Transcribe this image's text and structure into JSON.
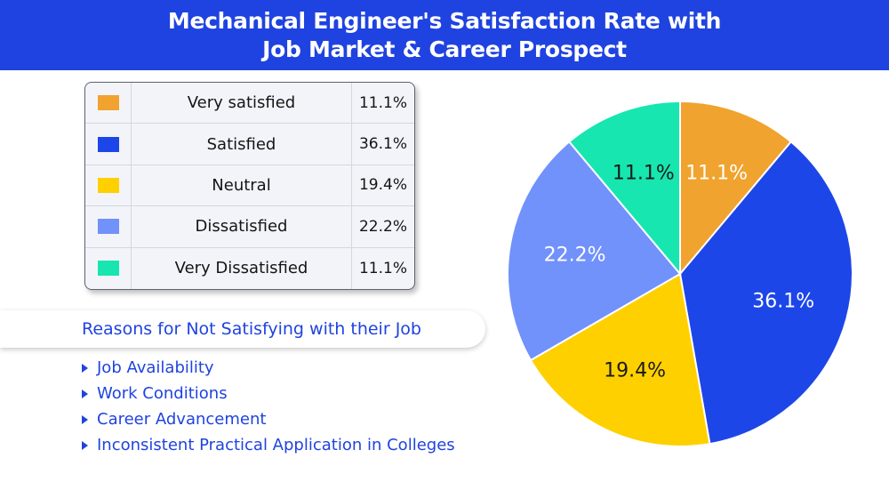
{
  "title_lines": [
    "Mechanical Engineer's Satisfaction Rate with",
    "Job Market & Career Prospect"
  ],
  "legend": [
    {
      "label": "Very satisfied",
      "value": "11.1%",
      "color": "#f0a32e"
    },
    {
      "label": "Satisfied",
      "value": "36.1%",
      "color": "#1d46e8"
    },
    {
      "label": "Neutral",
      "value": "19.4%",
      "color": "#ffd000"
    },
    {
      "label": "Dissatisfied",
      "value": "22.2%",
      "color": "#7191fb"
    },
    {
      "label": "Very Dissatisfied",
      "value": "11.1%",
      "color": "#17e6b0"
    }
  ],
  "reasons": {
    "title": "Reasons for Not Satisfying with their Job",
    "items": [
      "Job Availability",
      "Work Conditions",
      "Career Advancement",
      "Inconsistent Practical Application in Colleges"
    ]
  },
  "chart_data": {
    "type": "pie",
    "title": "Mechanical Engineer's Satisfaction Rate with Job Market & Career Prospect",
    "categories": [
      "Very satisfied",
      "Satisfied",
      "Neutral",
      "Dissatisfied",
      "Very Dissatisfied"
    ],
    "values": [
      11.1,
      36.1,
      19.4,
      22.2,
      11.1
    ],
    "labels": [
      "11.1%",
      "36.1%",
      "19.4%",
      "22.2%",
      "11.1%"
    ],
    "colors": [
      "#f0a32e",
      "#1d46e8",
      "#ffd000",
      "#7191fb",
      "#17e6b0"
    ],
    "label_colors": [
      "#ffffff",
      "#ffffff",
      "#1a1a1a",
      "#ffffff",
      "#1a1a1a"
    ],
    "start_angle": "12 o'clock",
    "direction": "clockwise",
    "legend_position": "left"
  }
}
